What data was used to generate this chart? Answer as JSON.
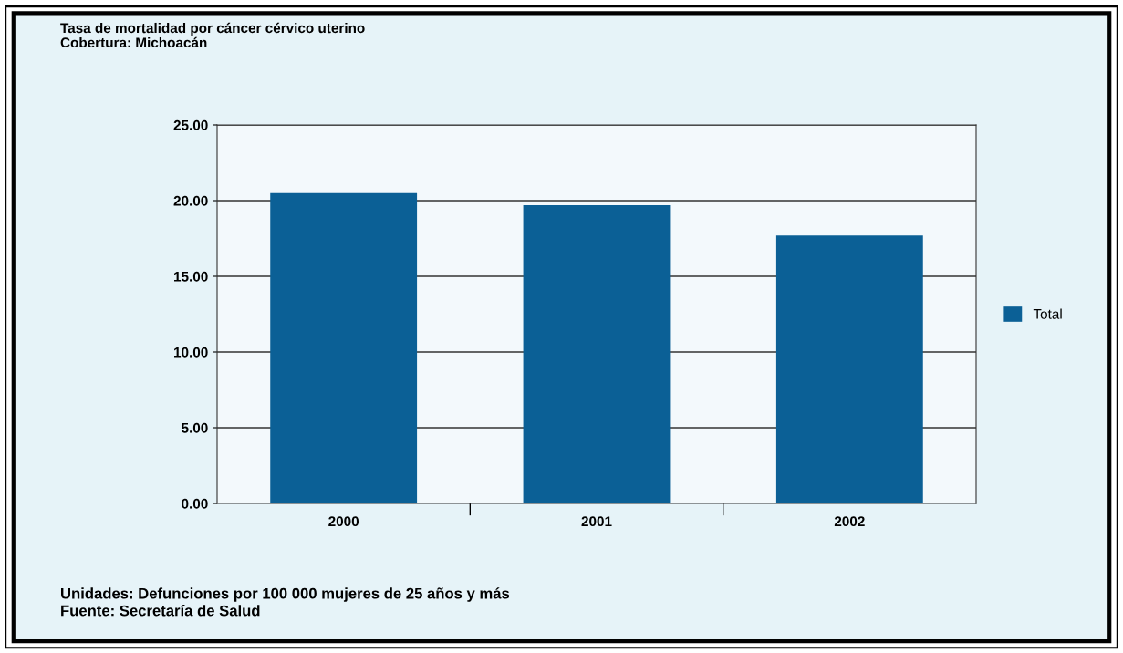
{
  "chart_data": {
    "type": "bar",
    "title": "Tasa de mortalidad por cáncer cérvico uterino",
    "subtitle": "Cobertura: Michoacán",
    "categories": [
      "2000",
      "2001",
      "2002"
    ],
    "series": [
      {
        "name": "Total",
        "color": "#0b6096",
        "values": [
          20.5,
          19.7,
          17.7
        ]
      }
    ],
    "ylim": [
      0,
      25
    ],
    "yticks": [
      {
        "value": 0,
        "label": "0.00"
      },
      {
        "value": 5,
        "label": "5.00"
      },
      {
        "value": 10,
        "label": "10.00"
      },
      {
        "value": 15,
        "label": "15.00"
      },
      {
        "value": 20,
        "label": "20.00"
      },
      {
        "value": 25,
        "label": "25.00"
      }
    ],
    "grid": "y",
    "legend": "right",
    "annotations": [
      "Unidades: Defunciones por 100 000 mujeres de 25 años y más",
      "Fuente: Secretaría de Salud"
    ]
  }
}
